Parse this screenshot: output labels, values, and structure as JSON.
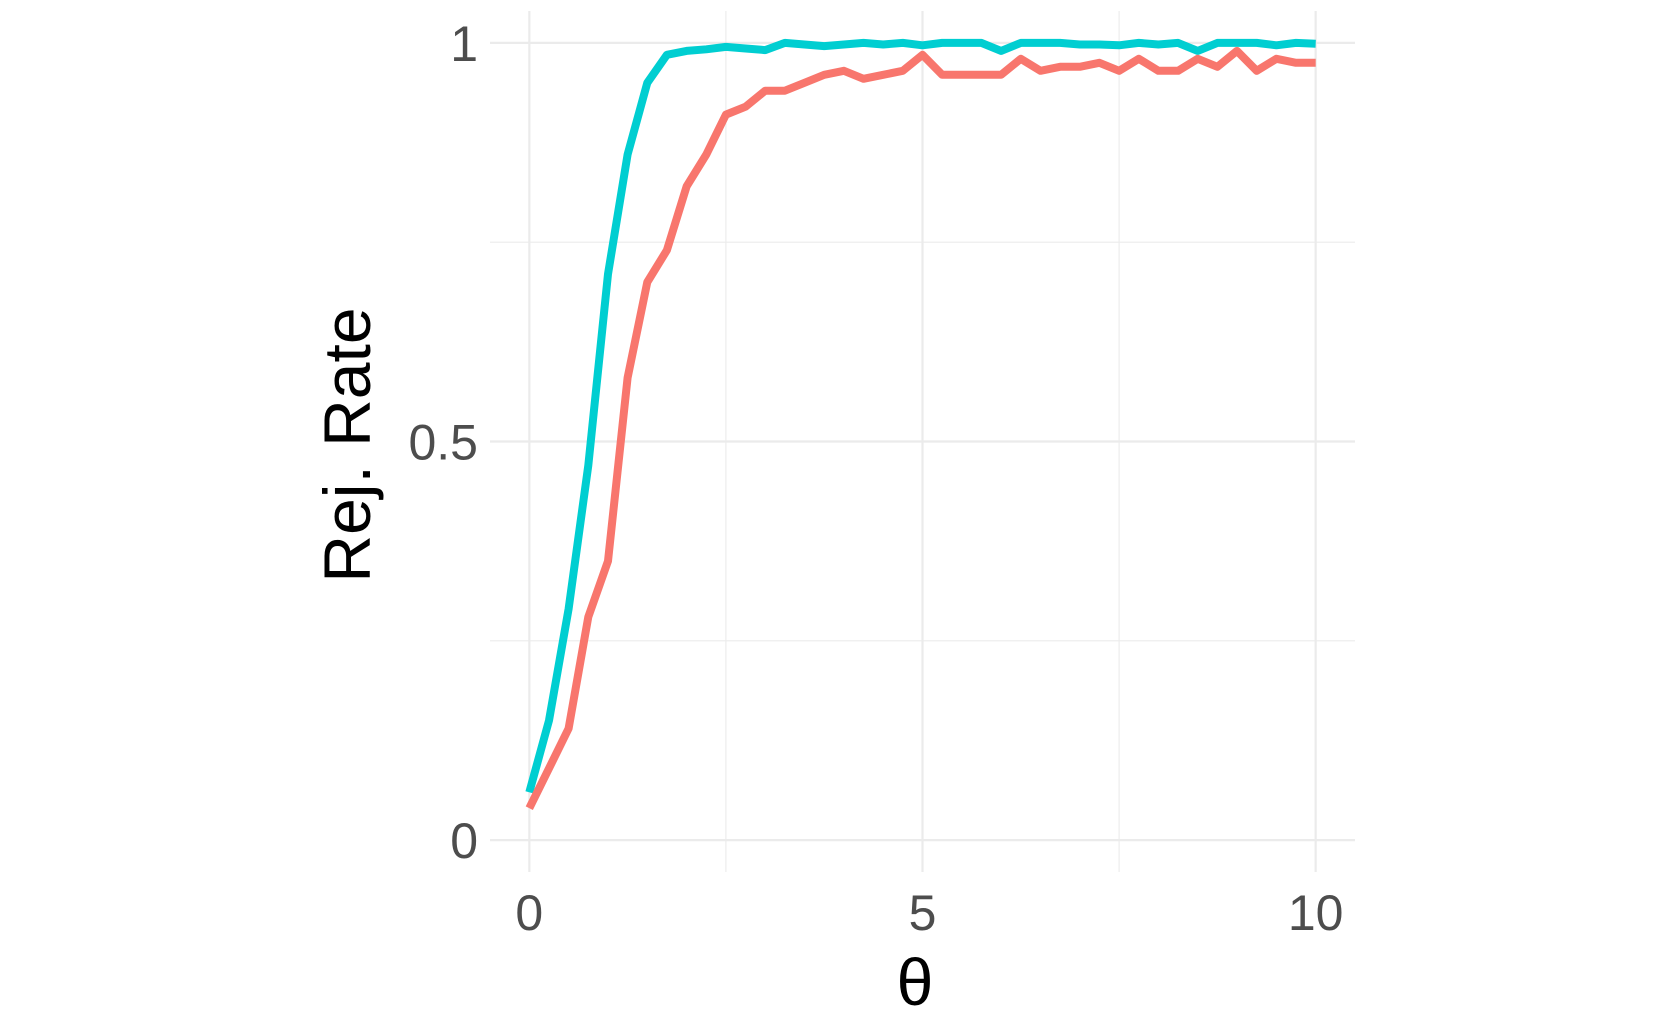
{
  "chart_data": {
    "type": "line",
    "xlabel": "θ",
    "ylabel": "Rej. Rate",
    "xlim": [
      -0.5,
      10.5
    ],
    "ylim": [
      -0.04,
      1.04
    ],
    "x_ticks": [
      {
        "value": 0,
        "label": "0"
      },
      {
        "value": 5,
        "label": "5"
      },
      {
        "value": 10,
        "label": "10"
      }
    ],
    "y_ticks": [
      {
        "value": 0,
        "label": "0"
      },
      {
        "value": 0.5,
        "label": "0.5"
      },
      {
        "value": 1,
        "label": "1"
      }
    ],
    "x_minor": [
      2.5,
      7.5
    ],
    "y_minor": [
      0.25,
      0.75
    ],
    "grid": true,
    "legend": "none",
    "x": [
      0,
      0.25,
      0.5,
      0.75,
      1,
      1.25,
      1.5,
      1.75,
      2,
      2.25,
      2.5,
      2.75,
      3,
      3.25,
      3.5,
      3.75,
      4,
      4.25,
      4.5,
      4.75,
      5,
      5.25,
      5.5,
      5.75,
      6,
      6.25,
      6.5,
      6.75,
      7,
      7.25,
      7.5,
      7.75,
      8,
      8.25,
      8.5,
      8.75,
      9,
      9.25,
      9.5,
      9.75,
      10
    ],
    "series": [
      {
        "color": "#00CED1",
        "values": [
          0.06,
          0.15,
          0.29,
          0.47,
          0.71,
          0.86,
          0.95,
          0.985,
          0.99,
          0.992,
          0.995,
          0.993,
          0.991,
          1.0,
          0.998,
          0.996,
          0.998,
          1.0,
          0.998,
          1.0,
          0.997,
          1.0,
          1.0,
          1.0,
          0.99,
          1.0,
          1.0,
          1.0,
          0.998,
          0.998,
          0.997,
          1.0,
          0.998,
          1.0,
          0.99,
          1.0,
          1.0,
          1.0,
          0.997,
          1.0,
          0.999
        ]
      },
      {
        "color": "#F8766D",
        "values": [
          0.04,
          0.09,
          0.14,
          0.28,
          0.35,
          0.58,
          0.7,
          0.74,
          0.82,
          0.86,
          0.91,
          0.92,
          0.94,
          0.94,
          0.95,
          0.96,
          0.965,
          0.955,
          0.96,
          0.965,
          0.985,
          0.96,
          0.96,
          0.96,
          0.96,
          0.98,
          0.965,
          0.97,
          0.97,
          0.975,
          0.965,
          0.98,
          0.965,
          0.965,
          0.98,
          0.97,
          0.99,
          0.965,
          0.98,
          0.975,
          0.975
        ]
      }
    ]
  }
}
